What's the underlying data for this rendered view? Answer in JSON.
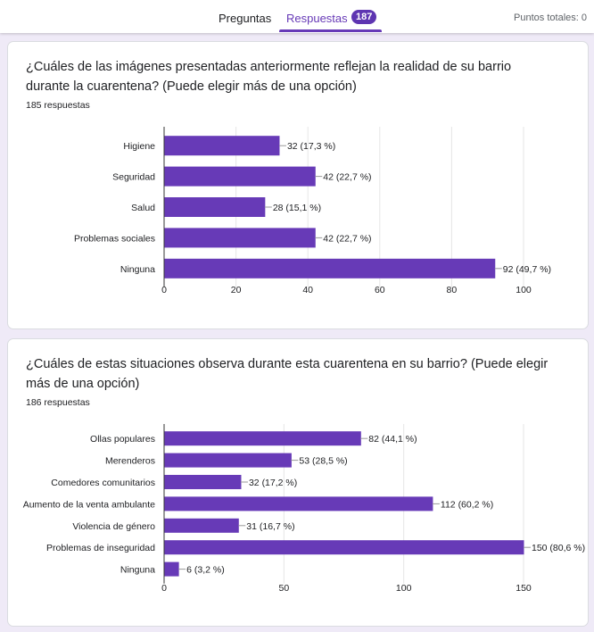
{
  "header": {
    "tab_questions": "Preguntas",
    "tab_responses": "Respuestas",
    "responses_badge": "187",
    "total_points": "Puntos totales: 0"
  },
  "colors": {
    "bar": "#673ab7",
    "accent": "#673ab7",
    "background": "#efeaf7"
  },
  "questions": [
    {
      "title": "¿Cuáles de las imágenes presentadas anteriormente reflejan la realidad de su barrio durante la cuarentena? (Puede elegir más de una opción)",
      "count": "185 respuestas"
    },
    {
      "title": "¿Cuáles de estas situaciones observa durante esta cuarentena en su barrio? (Puede elegir más de una opción)",
      "count": "186 respuestas"
    }
  ],
  "chart_data": [
    {
      "type": "bar",
      "orientation": "horizontal",
      "categories": [
        "Higiene",
        "Seguridad",
        "Salud",
        "Problemas sociales",
        "Ninguna"
      ],
      "values": [
        32,
        42,
        28,
        42,
        92
      ],
      "labels": [
        "32 (17,3 %)",
        "42 (22,7 %)",
        "28 (15,1 %)",
        "42 (22,7 %)",
        "92 (49,7 %)"
      ],
      "xlim": [
        0,
        100
      ],
      "xticks": [
        0,
        20,
        40,
        60,
        80,
        100
      ],
      "grid": true
    },
    {
      "type": "bar",
      "orientation": "horizontal",
      "categories": [
        "Ollas populares",
        "Merenderos",
        "Comedores comunitarios",
        "Aumento de la venta ambulante",
        "Violencia de género",
        "Problemas de inseguridad",
        "Ninguna"
      ],
      "values": [
        82,
        53,
        32,
        112,
        31,
        150,
        6
      ],
      "labels": [
        "82 (44,1 %)",
        "53 (28,5 %)",
        "32 (17,2 %)",
        "112 (60,2 %)",
        "31 (16,7 %)",
        "150 (80,6 %)",
        "6 (3,2 %)"
      ],
      "xlim": [
        0,
        150
      ],
      "xticks": [
        0,
        50,
        100,
        150
      ],
      "grid": true
    }
  ]
}
